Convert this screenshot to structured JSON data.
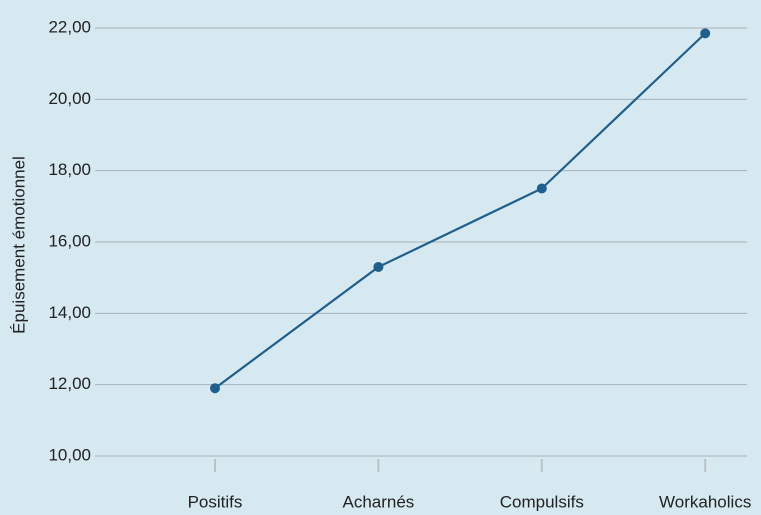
{
  "chart_data": {
    "type": "line",
    "y_label": "Épuisement émotionnel",
    "categories": [
      "Positifs",
      "Acharnés",
      "Compulsifs",
      "Workaholics"
    ],
    "series": [
      {
        "name": "Épuisement émotionnel",
        "color": "#1f5f8e",
        "values": [
          11.9,
          15.3,
          17.5,
          21.85
        ]
      }
    ],
    "ylim": [
      9.5,
      22.5
    ],
    "yticks": [
      {
        "value": 10,
        "label": "10,00"
      },
      {
        "value": 12,
        "label": "12,00"
      },
      {
        "value": 14,
        "label": "14,00"
      },
      {
        "value": 16,
        "label": "16,00"
      },
      {
        "value": 18,
        "label": "18,00"
      },
      {
        "value": 20,
        "label": "20,00"
      },
      {
        "value": 22,
        "label": "22,00"
      }
    ],
    "grid": true,
    "background": "#d6e9f0"
  }
}
